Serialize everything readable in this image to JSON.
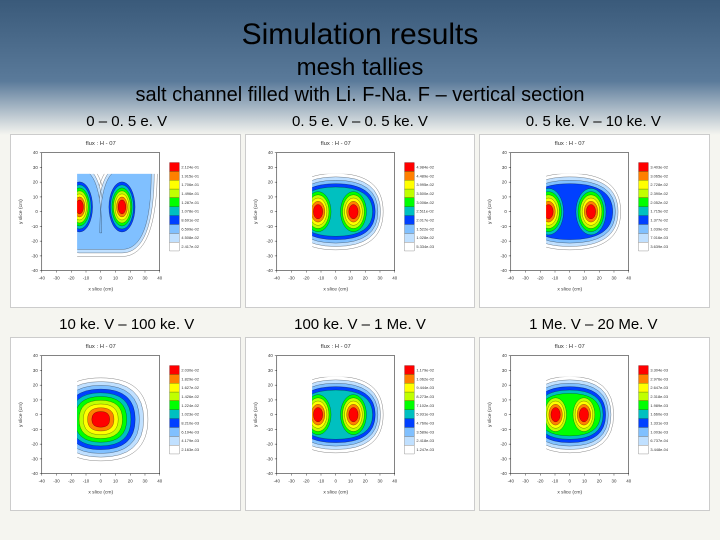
{
  "header": {
    "title": "Simulation results",
    "subtitle": "mesh tallies",
    "description": "salt channel filled with Li. F-Na. F – vertical section"
  },
  "energy_labels_top": [
    "0 – 0. 5 e. V",
    "0. 5 e. V – 0. 5 ke. V",
    "0. 5 ke. V – 10 ke. V"
  ],
  "energy_labels_bottom": [
    "10 ke. V – 100 ke. V",
    "100 ke. V – 1 Me. V",
    "1 Me. V – 20 Me. V"
  ],
  "contour_colors": [
    "#ffffff",
    "#c0e0ff",
    "#80c0ff",
    "#0040ff",
    "#00c0c0",
    "#00ff00",
    "#c0ff00",
    "#ffff00",
    "#ff8000",
    "#ff0000"
  ],
  "legend_values": [
    [
      "2.417e-02",
      "4.508e-02",
      "6.599e-02",
      "8.691e-02",
      "1.078e-01",
      "1.287e-01",
      "1.496e-01",
      "1.706e-01",
      "1.915e-01",
      "2.124e-01"
    ],
    [
      "5.334e-03",
      "1.028e-02",
      "1.522e-02",
      "2.017e-02",
      "2.511e-02",
      "3.006e-02",
      "3.500e-02",
      "3.995e-02",
      "4.489e-02",
      "4.984e-02"
    ],
    [
      "3.639e-03",
      "7.016e-03",
      "1.039e-02",
      "1.377e-02",
      "1.715e-02",
      "2.052e-02",
      "2.390e-02",
      "2.728e-02",
      "3.065e-02",
      "3.403e-02"
    ],
    [
      "2.163e-03",
      "4.179e-03",
      "6.194e-03",
      "8.210e-03",
      "1.023e-02",
      "1.224e-02",
      "1.426e-02",
      "1.627e-02",
      "1.829e-02",
      "2.030e-02"
    ],
    [
      "1.247e-03",
      "2.418e-03",
      "3.589e-03",
      "4.760e-03",
      "5.931e-03",
      "7.102e-03",
      "8.273e-03",
      "9.444e-03",
      "1.062e-02",
      "1.179e-02"
    ],
    [
      "3.448e-04",
      "6.737e-04",
      "1.003e-03",
      "1.331e-03",
      "1.660e-03",
      "1.989e-03",
      "2.318e-03",
      "2.647e-03",
      "2.976e-03",
      "3.304e-03"
    ]
  ],
  "plots": [
    {
      "type": "double_peak_u",
      "plot_title": "flux : H - 07"
    },
    {
      "type": "double_peak",
      "plot_title": "flux : H - 07"
    },
    {
      "type": "double_peak_wide",
      "plot_title": "flux : H - 07"
    },
    {
      "type": "single_blob",
      "plot_title": "flux : H - 07"
    },
    {
      "type": "double_peak",
      "plot_title": "flux : H - 07"
    },
    {
      "type": "double_peak_tight",
      "plot_title": "flux : H - 07"
    }
  ],
  "axes": {
    "xlabel": "x slice (cm)",
    "ylabel": "y slice (cm)",
    "xmin": -40,
    "xmax": 40,
    "ymin": -40,
    "ymax": 40,
    "ticks": [
      -40,
      -30,
      -20,
      -10,
      0,
      10,
      20,
      30,
      40
    ]
  },
  "plot_bg": "#ffffff",
  "frame_color": "#000000"
}
